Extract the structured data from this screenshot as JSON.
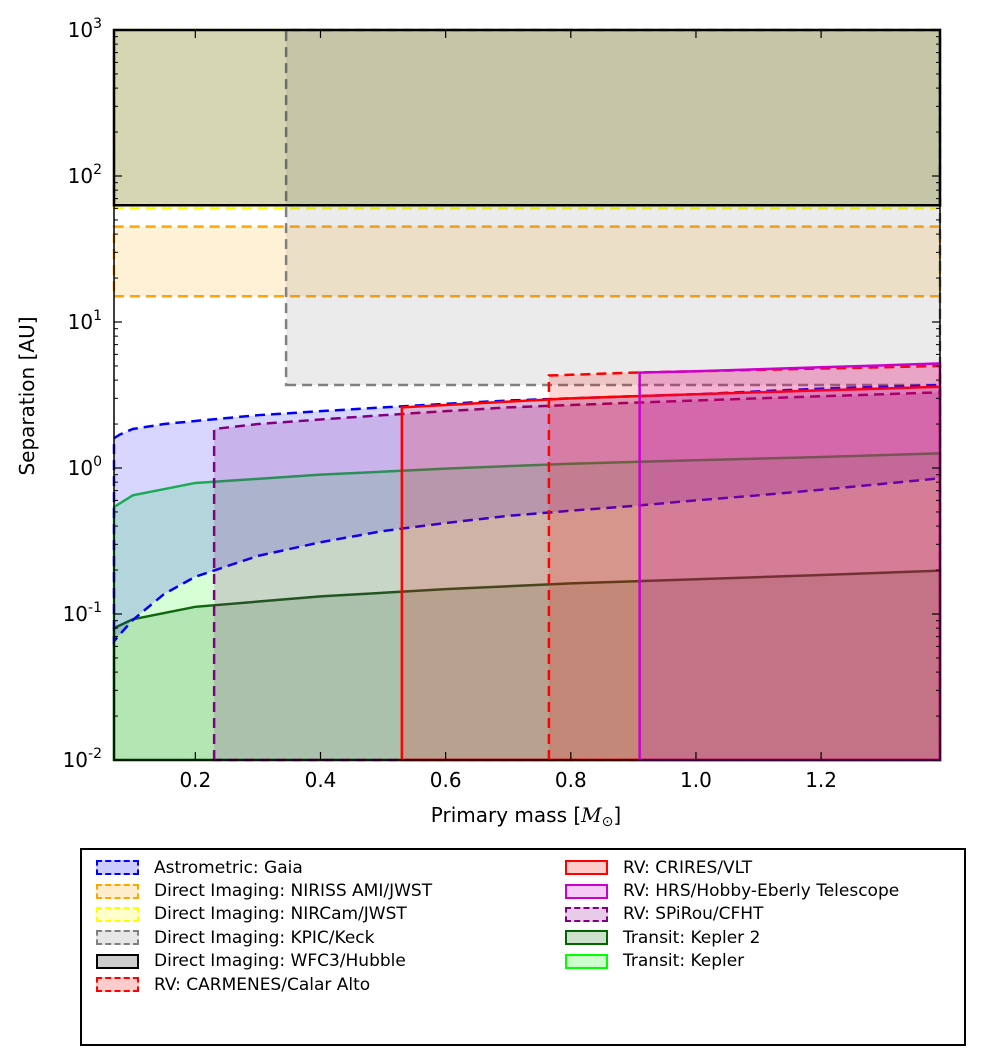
{
  "chart_data": {
    "type": "area",
    "xlabel": "Primary mass [M☉]",
    "xlabel_main": "Primary mass [",
    "xlabel_symbol": "M",
    "xlabel_sub": "⊙",
    "xlabel_end": "]",
    "ylabel": "Separation [AU]",
    "xlim": [
      0.07,
      1.39
    ],
    "ylim": [
      0.01,
      1000
    ],
    "yscale": "log",
    "xticks": [
      0.2,
      0.4,
      0.6,
      0.8,
      1.0,
      1.2
    ],
    "xtick_labels": [
      "0.2",
      "0.4",
      "0.6",
      "0.8",
      "1.0",
      "1.2"
    ],
    "yticks": [
      {
        "value": 0.01,
        "base": "10",
        "exp": "-2"
      },
      {
        "value": 0.1,
        "base": "10",
        "exp": "-1"
      },
      {
        "value": 1,
        "base": "10",
        "exp": "0"
      },
      {
        "value": 10,
        "base": "10",
        "exp": "1"
      },
      {
        "value": 100,
        "base": "10",
        "exp": "2"
      },
      {
        "value": 1000,
        "base": "10",
        "exp": "3"
      }
    ],
    "legend_position": "below plot",
    "series": [
      {
        "name": "Direct Imaging: NIRISS AMI/JWST",
        "kind": "rect",
        "color": "#ffa500",
        "dashed": true,
        "x": [
          0.07,
          1.39
        ],
        "y": [
          15,
          45
        ]
      },
      {
        "name": "Direct Imaging: NIRCam/JWST",
        "kind": "rect",
        "color": "#ffff00",
        "dashed": true,
        "x": [
          0.07,
          1.39
        ],
        "y": [
          60,
          1000
        ]
      },
      {
        "name": "Direct Imaging: KPIC/Keck",
        "kind": "rect",
        "color": "#808080",
        "dashed": true,
        "x": [
          0.345,
          1.39
        ],
        "y": [
          3.7,
          1000
        ]
      },
      {
        "name": "Direct Imaging: WFC3/Hubble",
        "kind": "rect",
        "color": "#000000",
        "dashed": false,
        "x": [
          0.07,
          1.39
        ],
        "y": [
          63,
          1000
        ]
      },
      {
        "name": "Transit: Kepler",
        "kind": "curve-below",
        "color": "#00ff00",
        "dashed": false,
        "line_color": "#22cc33",
        "x": [
          0.07,
          0.1,
          0.2,
          0.4,
          0.6,
          0.8,
          1.0,
          1.2,
          1.39
        ],
        "y": [
          0.54,
          0.65,
          0.79,
          0.9,
          0.99,
          1.07,
          1.13,
          1.19,
          1.26
        ]
      },
      {
        "name": "Transit: Kepler 2",
        "kind": "curve-below",
        "color": "#006400",
        "dashed": false,
        "line_color": "#116611",
        "x": [
          0.07,
          0.1,
          0.2,
          0.4,
          0.6,
          0.8,
          1.0,
          1.2,
          1.39
        ],
        "y": [
          0.08,
          0.092,
          0.112,
          0.132,
          0.148,
          0.162,
          0.173,
          0.185,
          0.198
        ]
      },
      {
        "name": "Astrometric: Gaia",
        "kind": "band",
        "color": "#0000ff",
        "dashed": true,
        "x": [
          0.07,
          0.08,
          0.1,
          0.15,
          0.2,
          0.3,
          0.4,
          0.5,
          0.6,
          0.7,
          0.8,
          0.9,
          1.0,
          1.1,
          1.2,
          1.3,
          1.39
        ],
        "y_low": [
          0.065,
          0.073,
          0.091,
          0.137,
          0.18,
          0.25,
          0.31,
          0.37,
          0.42,
          0.47,
          0.51,
          0.55,
          0.6,
          0.65,
          0.71,
          0.78,
          0.85
        ],
        "y_high": [
          1.6,
          1.7,
          1.85,
          2.0,
          2.1,
          2.3,
          2.45,
          2.6,
          2.75,
          2.9,
          3.0,
          3.1,
          3.2,
          3.35,
          3.5,
          3.6,
          3.7
        ]
      },
      {
        "name": "RV: SPiRou/CFHT",
        "kind": "curve-below",
        "color": "#800080",
        "dashed": true,
        "x": [
          0.23,
          0.3,
          0.4,
          0.5,
          0.6,
          0.7,
          0.8,
          0.9,
          1.0,
          1.1,
          1.2,
          1.3,
          1.39
        ],
        "y": [
          1.85,
          2.0,
          2.15,
          2.3,
          2.45,
          2.6,
          2.7,
          2.8,
          2.9,
          3.0,
          3.1,
          3.2,
          3.3
        ]
      },
      {
        "name": "RV: CRIRES/VLT",
        "kind": "curve-below",
        "color": "#ff0000",
        "dashed": false,
        "x": [
          0.53,
          0.6,
          0.7,
          0.8,
          0.9,
          1.0,
          1.1,
          1.2,
          1.3,
          1.39
        ],
        "y": [
          2.6,
          2.7,
          2.85,
          3.0,
          3.1,
          3.2,
          3.3,
          3.4,
          3.5,
          3.6
        ]
      },
      {
        "name": "RV: CARMENES/Calar Alto",
        "kind": "curve-below",
        "color": "#ff0000",
        "dashed": true,
        "x": [
          0.765,
          0.8,
          0.9,
          1.0,
          1.1,
          1.2,
          1.3,
          1.39
        ],
        "y": [
          4.3,
          4.35,
          4.5,
          4.6,
          4.7,
          4.8,
          4.9,
          5.0
        ]
      },
      {
        "name": "RV: HRS/Hobby-Eberly Telescope",
        "kind": "curve-below",
        "color": "#cc00cc",
        "dashed": false,
        "x": [
          0.91,
          1.0,
          1.1,
          1.2,
          1.3,
          1.39
        ],
        "y": [
          4.5,
          4.6,
          4.75,
          4.9,
          5.05,
          5.2
        ]
      }
    ],
    "legend": {
      "columns": [
        [
          {
            "label": "Astrometric: Gaia",
            "color": "#0000ff",
            "dashed": true
          },
          {
            "label": "Direct Imaging: NIRISS AMI/JWST",
            "color": "#ffa500",
            "dashed": true
          },
          {
            "label": "Direct Imaging: NIRCam/JWST",
            "color": "#ffff00",
            "dashed": true
          },
          {
            "label": "Direct Imaging: KPIC/Keck",
            "color": "#808080",
            "dashed": true
          },
          {
            "label": "Direct Imaging: WFC3/Hubble",
            "color": "#000000",
            "dashed": false
          },
          {
            "label": "RV: CARMENES/Calar Alto",
            "color": "#ff0000",
            "dashed": true
          }
        ],
        [
          {
            "label": "RV: CRIRES/VLT",
            "color": "#ff0000",
            "dashed": false
          },
          {
            "label": "RV: HRS/Hobby-Eberly Telescope",
            "color": "#cc00cc",
            "dashed": false
          },
          {
            "label": "RV: SPiRou/CFHT",
            "color": "#800080",
            "dashed": true
          },
          {
            "label": "Transit: Kepler 2",
            "color": "#006400",
            "dashed": false
          },
          {
            "label": "Transit: Kepler",
            "color": "#00ff00",
            "dashed": false
          }
        ]
      ]
    }
  }
}
